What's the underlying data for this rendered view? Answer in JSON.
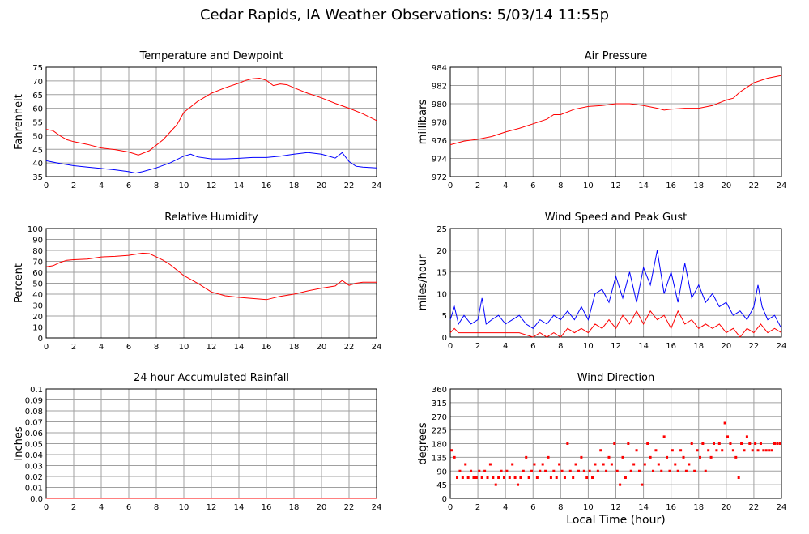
{
  "page_title": "Cedar Rapids, IA Weather Observations: 5/03/14 11:55p",
  "shared_xlabel": "Local Time (hour)",
  "colors": {
    "primary_series": "#ff0000",
    "secondary_series": "#0000ff",
    "grid": "#a0a0a0"
  },
  "chart_data": [
    {
      "id": "temp",
      "type": "line",
      "title": "Temperature and Dewpoint",
      "xlabel": "",
      "ylabel": "Fahrenheit",
      "xlim": [
        0,
        24
      ],
      "ylim": [
        35,
        75
      ],
      "xticks": [
        0,
        2,
        4,
        6,
        8,
        10,
        12,
        14,
        16,
        18,
        20,
        22,
        24
      ],
      "yticks": [
        35,
        40,
        45,
        50,
        55,
        60,
        65,
        70,
        75
      ],
      "grid": true,
      "series": [
        {
          "color": "#ff0000",
          "x": [
            0,
            0.5,
            1,
            1.5,
            2,
            3,
            4,
            5,
            6,
            6.7,
            7.5,
            8.5,
            9.5,
            10,
            11,
            12,
            13,
            14,
            14.5,
            15,
            15.5,
            16,
            16.5,
            17,
            17.5,
            18,
            19,
            20,
            21,
            22,
            23,
            24
          ],
          "y": [
            52.3,
            51.8,
            50,
            48.5,
            47.8,
            46.8,
            45.5,
            44.9,
            44,
            42.9,
            44.5,
            48.5,
            54,
            58.5,
            62.5,
            65.5,
            67.5,
            69.2,
            70.2,
            70.8,
            71,
            70.2,
            68.3,
            68.9,
            68.6,
            67.5,
            65.5,
            63.8,
            61.8,
            60,
            58,
            55.5
          ]
        },
        {
          "color": "#0000ff",
          "x": [
            0,
            1,
            2,
            3,
            4,
            5,
            6,
            6.5,
            7,
            8,
            9,
            10,
            10.5,
            11,
            12,
            13,
            14,
            15,
            16,
            17,
            18,
            19,
            20,
            21,
            21.5,
            22,
            22.5,
            23,
            24
          ],
          "y": [
            40.8,
            39.8,
            39,
            38.5,
            38,
            37.5,
            36.8,
            36.3,
            36.8,
            38.2,
            40,
            42.5,
            43.2,
            42.2,
            41.5,
            41.5,
            41.7,
            42,
            42,
            42.5,
            43.2,
            43.8,
            43.2,
            41.8,
            43.8,
            40.5,
            38.8,
            38.5,
            38.2
          ]
        }
      ]
    },
    {
      "id": "pressure",
      "type": "line",
      "title": "Air Pressure",
      "xlabel": "",
      "ylabel": "millibars",
      "xlim": [
        0,
        24
      ],
      "ylim": [
        972,
        984
      ],
      "xticks": [
        0,
        2,
        4,
        6,
        8,
        10,
        12,
        14,
        16,
        18,
        20,
        22,
        24
      ],
      "yticks": [
        972,
        974,
        976,
        978,
        980,
        982,
        984
      ],
      "grid": true,
      "series": [
        {
          "color": "#ff0000",
          "x": [
            0,
            1,
            2,
            3,
            4,
            5,
            6,
            7,
            7.5,
            8,
            9,
            10,
            11,
            12,
            13,
            14,
            15,
            15.5,
            16,
            17,
            18,
            19,
            20,
            20.5,
            21,
            22,
            23,
            24
          ],
          "y": [
            975.5,
            975.9,
            976.1,
            976.4,
            976.9,
            977.3,
            977.8,
            978.3,
            978.8,
            978.8,
            979.4,
            979.7,
            979.8,
            980,
            980,
            979.8,
            979.5,
            979.3,
            979.4,
            979.5,
            979.5,
            979.8,
            980.4,
            980.6,
            981.3,
            982.3,
            982.8,
            983.1
          ]
        }
      ]
    },
    {
      "id": "humidity",
      "type": "line",
      "title": "Relative Humidity",
      "xlabel": "",
      "ylabel": "Percent",
      "xlim": [
        0,
        24
      ],
      "ylim": [
        0,
        100
      ],
      "xticks": [
        0,
        2,
        4,
        6,
        8,
        10,
        12,
        14,
        16,
        18,
        20,
        22,
        24
      ],
      "yticks": [
        0,
        10,
        20,
        30,
        40,
        50,
        60,
        70,
        80,
        90,
        100
      ],
      "grid": true,
      "series": [
        {
          "color": "#ff0000",
          "x": [
            0,
            0.5,
            1,
            1.5,
            2,
            3,
            4,
            5,
            6,
            7,
            7.5,
            8,
            8.5,
            9,
            9.5,
            10,
            11,
            12,
            13,
            14,
            15,
            16,
            17,
            18,
            19,
            20,
            21,
            21.5,
            22,
            22.5,
            23,
            24
          ],
          "y": [
            65,
            66,
            69,
            71,
            71.5,
            72,
            74,
            74.5,
            75.5,
            77.5,
            77,
            74,
            71,
            67,
            62,
            57,
            50,
            42,
            38.5,
            37,
            36,
            35,
            38,
            40,
            43,
            45.5,
            47.5,
            52.5,
            48,
            50,
            51,
            51
          ]
        }
      ]
    },
    {
      "id": "wind",
      "type": "line",
      "title": "Wind Speed and Peak Gust",
      "xlabel": "",
      "ylabel": "miles/hour",
      "xlim": [
        0,
        24
      ],
      "ylim": [
        0,
        25
      ],
      "xticks": [
        0,
        2,
        4,
        6,
        8,
        10,
        12,
        14,
        16,
        18,
        20,
        22,
        24
      ],
      "yticks": [
        0,
        5,
        10,
        15,
        20,
        25
      ],
      "grid": true,
      "series": [
        {
          "color": "#0000ff",
          "x": [
            0,
            0.3,
            0.6,
            1,
            1.5,
            2,
            2.3,
            2.6,
            3,
            3.5,
            4,
            4.5,
            5,
            5.5,
            6,
            6.5,
            7,
            7.5,
            8,
            8.5,
            9,
            9.5,
            10,
            10.5,
            11,
            11.5,
            12,
            12.5,
            13,
            13.5,
            14,
            14.5,
            15,
            15.5,
            16,
            16.5,
            17,
            17.5,
            18,
            18.5,
            19,
            19.5,
            20,
            20.5,
            21,
            21.5,
            22,
            22.3,
            22.6,
            23,
            23.5,
            24
          ],
          "y": [
            4,
            7,
            3,
            5,
            3,
            4,
            9,
            3,
            4,
            5,
            3,
            4,
            5,
            3,
            2,
            4,
            3,
            5,
            4,
            6,
            4,
            7,
            4,
            10,
            11,
            8,
            14,
            9,
            15,
            8,
            16,
            12,
            20,
            10,
            15,
            8,
            17,
            9,
            12,
            8,
            10,
            7,
            8,
            5,
            6,
            4,
            7,
            12,
            7,
            4,
            5,
            2
          ]
        },
        {
          "color": "#ff0000",
          "x": [
            0,
            0.3,
            0.6,
            1,
            2,
            3,
            4,
            5,
            6,
            6.5,
            7,
            7.5,
            8,
            8.5,
            9,
            9.5,
            10,
            10.5,
            11,
            11.5,
            12,
            12.5,
            13,
            13.5,
            14,
            14.5,
            15,
            15.5,
            16,
            16.5,
            17,
            17.5,
            18,
            18.5,
            19,
            19.5,
            20,
            20.5,
            21,
            21.5,
            22,
            22.5,
            23,
            23.5,
            24
          ],
          "y": [
            1,
            2,
            1,
            1,
            1,
            1,
            1,
            1,
            0,
            1,
            0,
            1,
            0,
            2,
            1,
            2,
            1,
            3,
            2,
            4,
            2,
            5,
            3,
            6,
            3,
            6,
            4,
            5,
            2,
            6,
            3,
            4,
            2,
            3,
            2,
            3,
            1,
            2,
            0,
            2,
            1,
            3,
            1,
            2,
            1
          ]
        }
      ]
    },
    {
      "id": "rain",
      "type": "line",
      "title": "24 hour Accumulated Rainfall",
      "xlabel": "",
      "ylabel": "Inches",
      "xlim": [
        0,
        24
      ],
      "ylim": [
        0,
        0.1
      ],
      "xticks": [
        0,
        2,
        4,
        6,
        8,
        10,
        12,
        14,
        16,
        18,
        20,
        22,
        24
      ],
      "yticks": [
        0.0,
        0.01,
        0.02,
        0.03,
        0.04,
        0.05,
        0.06,
        0.07,
        0.08,
        0.09,
        0.1
      ],
      "ytick_labels": [
        "0.0",
        "0.01",
        "0.02",
        "0.03",
        "0.04",
        "0.05",
        "0.06",
        "0.07",
        "0.08",
        "0.09",
        "0.1"
      ],
      "grid": true,
      "series": [
        {
          "color": "#ff0000",
          "x": [
            0,
            24
          ],
          "y": [
            0,
            0
          ]
        }
      ]
    },
    {
      "id": "winddir",
      "type": "scatter",
      "title": "Wind Direction",
      "xlabel": "Local Time (hour)",
      "ylabel": "degrees",
      "xlim": [
        0,
        24
      ],
      "ylim": [
        0,
        360
      ],
      "xticks": [
        0,
        2,
        4,
        6,
        8,
        10,
        12,
        14,
        16,
        18,
        20,
        22,
        24
      ],
      "yticks": [
        0,
        45,
        90,
        135,
        180,
        225,
        270,
        315,
        360
      ],
      "grid": true,
      "series": [
        {
          "color": "#ff0000",
          "x": [
            0.1,
            0.3,
            0.5,
            0.7,
            0.9,
            1.1,
            1.3,
            1.5,
            1.7,
            1.9,
            2.1,
            2.3,
            2.5,
            2.7,
            2.9,
            3.1,
            3.3,
            3.5,
            3.7,
            3.9,
            4.1,
            4.3,
            4.5,
            4.7,
            4.9,
            5.1,
            5.3,
            5.5,
            5.7,
            5.9,
            6.1,
            6.3,
            6.5,
            6.7,
            6.9,
            7.1,
            7.3,
            7.5,
            7.7,
            7.9,
            8.1,
            8.3,
            8.5,
            8.7,
            8.9,
            9.1,
            9.3,
            9.5,
            9.7,
            9.9,
            10.1,
            10.3,
            10.5,
            10.7,
            10.9,
            11.1,
            11.3,
            11.5,
            11.7,
            11.9,
            12.1,
            12.3,
            12.5,
            12.7,
            12.9,
            13.1,
            13.3,
            13.5,
            13.7,
            13.9,
            14.1,
            14.3,
            14.5,
            14.7,
            14.9,
            15.1,
            15.3,
            15.5,
            15.7,
            15.9,
            16.1,
            16.3,
            16.5,
            16.7,
            16.9,
            17.1,
            17.3,
            17.5,
            17.7,
            17.9,
            18.1,
            18.3,
            18.5,
            18.7,
            18.9,
            19.1,
            19.3,
            19.5,
            19.7,
            19.9,
            20.1,
            20.3,
            20.5,
            20.7,
            20.9,
            21.1,
            21.3,
            21.5,
            21.7,
            21.9,
            22.1,
            22.3,
            22.5,
            22.7,
            22.9,
            23.1,
            23.3,
            23.5,
            23.7,
            23.9
          ],
          "y": [
            158,
            135,
            68,
            90,
            68,
            112,
            68,
            90,
            68,
            68,
            90,
            68,
            90,
            68,
            112,
            68,
            45,
            68,
            90,
            68,
            90,
            68,
            112,
            68,
            45,
            68,
            90,
            135,
            68,
            90,
            112,
            68,
            90,
            112,
            90,
            135,
            68,
            90,
            68,
            112,
            90,
            68,
            180,
            90,
            68,
            112,
            90,
            135,
            90,
            68,
            90,
            68,
            112,
            90,
            158,
            112,
            90,
            135,
            112,
            180,
            90,
            45,
            135,
            68,
            180,
            90,
            112,
            158,
            90,
            45,
            112,
            180,
            135,
            90,
            158,
            112,
            90,
            203,
            135,
            90,
            158,
            112,
            90,
            158,
            135,
            90,
            112,
            180,
            90,
            158,
            135,
            180,
            90,
            158,
            135,
            180,
            158,
            180,
            158,
            248,
            203,
            180,
            158,
            135,
            68,
            180,
            158,
            203,
            180,
            158,
            180,
            158,
            180,
            158,
            158,
            158,
            158,
            180,
            180,
            180
          ]
        }
      ]
    }
  ]
}
